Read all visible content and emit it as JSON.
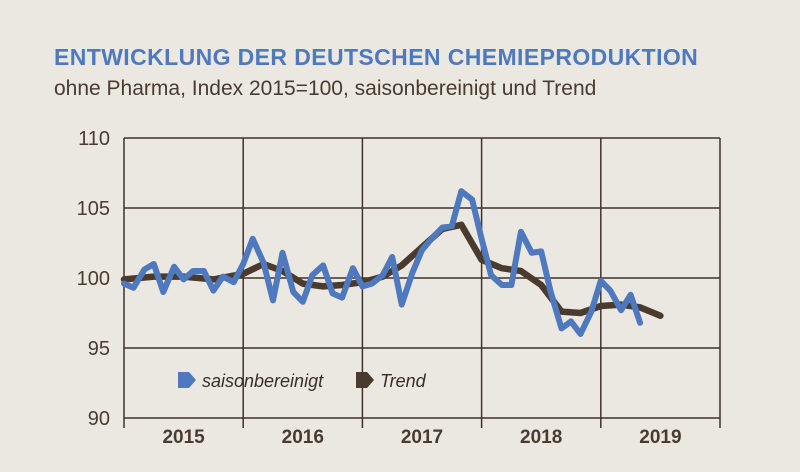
{
  "chart_data": {
    "type": "line",
    "title": "ENTWICKLUNG DER DEUTSCHEN CHEMIEPRODUKTION",
    "subtitle": "ohne Pharma, Index 2015=100, saisonbereinigt und Trend",
    "xlabel": "",
    "ylabel": "",
    "ylim": [
      90,
      110
    ],
    "yticks": [
      "110",
      "105",
      "100",
      "95",
      "90"
    ],
    "xticks": [
      "2015",
      "2016",
      "2017",
      "2018",
      "2019"
    ],
    "xlim": [
      2015.0,
      2020.0
    ],
    "grid": true,
    "legend_position": "bottom-left",
    "colors": {
      "saisonbereinigt": "#4e79be",
      "Trend": "#4b3a2e",
      "grid": "#3f3229"
    },
    "series": [
      {
        "name": "saisonbereinigt",
        "x": [
          2015.0,
          2015.08,
          2015.17,
          2015.25,
          2015.33,
          2015.42,
          2015.5,
          2015.58,
          2015.67,
          2015.75,
          2015.83,
          2015.92,
          2016.0,
          2016.08,
          2016.17,
          2016.25,
          2016.33,
          2016.42,
          2016.5,
          2016.58,
          2016.67,
          2016.75,
          2016.83,
          2016.92,
          2017.0,
          2017.08,
          2017.17,
          2017.25,
          2017.33,
          2017.42,
          2017.5,
          2017.58,
          2017.67,
          2017.75,
          2017.83,
          2017.92,
          2018.0,
          2018.08,
          2018.17,
          2018.25,
          2018.33,
          2018.42,
          2018.5,
          2018.58,
          2018.67,
          2018.75,
          2018.83,
          2018.92,
          2019.0,
          2019.08,
          2019.17,
          2019.25,
          2019.33
        ],
        "values": [
          99.6,
          99.3,
          100.6,
          101.0,
          99.0,
          100.8,
          99.9,
          100.5,
          100.5,
          99.1,
          100.1,
          99.7,
          101.0,
          102.8,
          101.1,
          98.4,
          101.8,
          99.0,
          98.3,
          100.2,
          100.9,
          98.9,
          98.6,
          100.7,
          99.4,
          99.6,
          100.2,
          101.5,
          98.1,
          100.4,
          102.0,
          102.8,
          103.6,
          103.7,
          106.2,
          105.6,
          102.8,
          100.2,
          99.5,
          99.5,
          103.3,
          101.8,
          101.9,
          99.0,
          96.4,
          96.9,
          96.0,
          97.6,
          99.8,
          99.1,
          97.7,
          98.8,
          96.8
        ]
      },
      {
        "name": "Trend",
        "x": [
          2015.0,
          2015.25,
          2015.5,
          2015.75,
          2016.0,
          2016.17,
          2016.33,
          2016.5,
          2016.67,
          2016.83,
          2017.0,
          2017.17,
          2017.33,
          2017.5,
          2017.67,
          2017.83,
          2018.0,
          2018.17,
          2018.33,
          2018.5,
          2018.67,
          2018.83,
          2019.0,
          2019.17,
          2019.33,
          2019.5
        ],
        "values": [
          99.9,
          100.1,
          100.1,
          99.9,
          100.3,
          101.0,
          100.5,
          99.6,
          99.4,
          99.5,
          99.7,
          100.1,
          100.9,
          102.2,
          103.5,
          103.8,
          101.3,
          100.7,
          100.5,
          99.5,
          97.6,
          97.5,
          98.0,
          98.1,
          97.9,
          97.3
        ]
      }
    ],
    "legend": [
      {
        "label": "saisonbereinigt",
        "color": "#4e79be"
      },
      {
        "label": "Trend",
        "color": "#4b3a2e"
      }
    ]
  }
}
